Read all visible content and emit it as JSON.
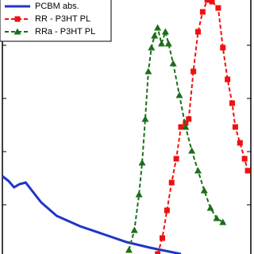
{
  "chart_data": {
    "type": "line",
    "xlim": [
      0,
      320
    ],
    "ylim": [
      0,
      320
    ],
    "yticks": [
      62,
      129,
      196,
      263
    ],
    "legend": "upper left",
    "series": [
      {
        "name": "PCBM abs.",
        "color": "#1f35c8",
        "style": "solid",
        "marker": "none",
        "x": [
          0,
          8,
          15,
          22,
          30,
          38,
          50,
          70,
          100,
          130,
          160,
          190,
          220,
          230
        ],
        "values": [
          98,
          92,
          84,
          88,
          90,
          80,
          65,
          48,
          35,
          25,
          15,
          8,
          2,
          0
        ]
      },
      {
        "name": "RR - P3HT PL",
        "color": "#ee1111",
        "style": "dashed",
        "marker": "square",
        "x": [
          200,
          206,
          212,
          218,
          224,
          230,
          236,
          240,
          246,
          252,
          258,
          264,
          270,
          278,
          284,
          290,
          296,
          300,
          306,
          312,
          316
        ],
        "values": [
          0,
          20,
          55,
          90,
          120,
          160,
          165,
          170,
          230,
          280,
          305,
          320,
          318,
          310,
          260,
          220,
          190,
          160,
          140,
          120,
          105
        ]
      },
      {
        "name": "RRa - P3HT PL",
        "color": "#1b6e1b",
        "style": "dashed",
        "marker": "triangle",
        "x": [
          163,
          170,
          176,
          180,
          184,
          188,
          192,
          196,
          200,
          205,
          210,
          214,
          220,
          228,
          236,
          244,
          252,
          260,
          268,
          276,
          284
        ],
        "values": [
          5,
          30,
          75,
          115,
          170,
          230,
          260,
          275,
          285,
          265,
          280,
          265,
          240,
          200,
          160,
          130,
          105,
          80,
          58,
          45,
          40
        ]
      }
    ]
  }
}
